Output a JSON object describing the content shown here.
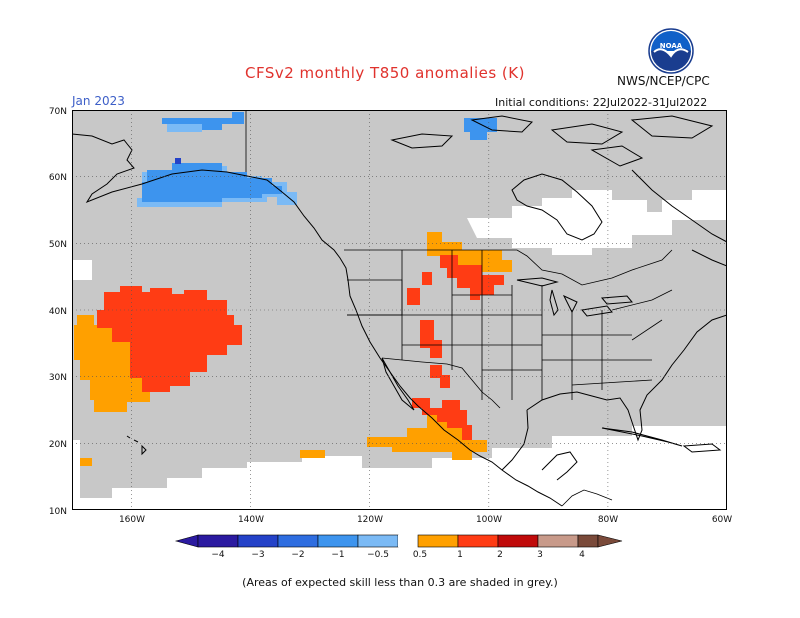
{
  "header": {
    "title": "CFSv2 monthly T850 anomalies (K)",
    "agency": "NWS/NCEP/CPC",
    "logo_text": "NOAA",
    "valid_month": "Jan 2023",
    "initial_conditions": "Initial conditions: 22Jul2022-31Jul2022"
  },
  "map": {
    "region": "North America / Eastern Pacific",
    "lat_range": [
      10,
      70
    ],
    "lon_range": [
      -170,
      -60
    ],
    "lat_ticks": [
      "70N",
      "60N",
      "50N",
      "40N",
      "30N",
      "20N",
      "10N"
    ],
    "lon_ticks": [
      "160W",
      "140W",
      "120W",
      "100W",
      "80W",
      "60W"
    ],
    "grey_meaning": "Areas of expected skill less than 0.3 are shaded in grey."
  },
  "colorbar": {
    "labels": [
      "−4",
      "−3",
      "−2",
      "−1",
      "−0.5",
      "0.5",
      "1",
      "2",
      "3",
      "4"
    ],
    "colors": [
      "#2b1aa0",
      "#2442c8",
      "#2e6de0",
      "#3d94ee",
      "#7bbaf5",
      "#ffffff",
      "#ffa000",
      "#ff3c14",
      "#e01010",
      "#a00000",
      "#c89a8a",
      "#7a4a3a"
    ]
  },
  "colors": {
    "grey_low_skill": "#c8c8c8",
    "ocean_blank": "#ffffff",
    "warm_orange": "#ffa000",
    "warm_red": "#ff3c14",
    "cool_blue": "#3d94ee",
    "cool_light_blue": "#7bbaf5",
    "coastline": "#000000",
    "grid": "#555555"
  },
  "footnote": "(Areas of expected skill less than 0.3 are shaded in grey.)"
}
